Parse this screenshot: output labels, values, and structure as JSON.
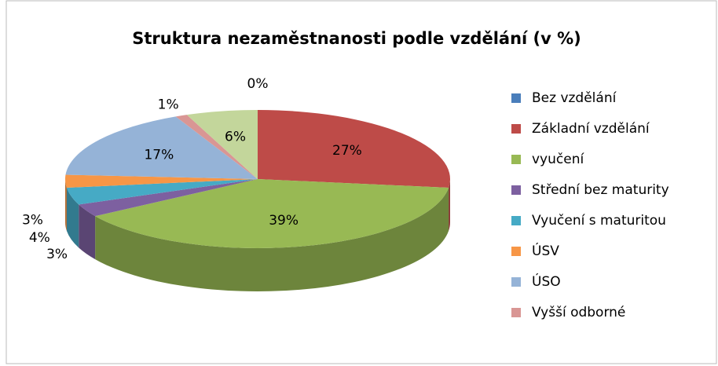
{
  "chart_data": {
    "type": "pie3d",
    "title": "Struktura nezaměstnanosti podle vzdělání (v %)",
    "categories": [
      "Bez vzdělání",
      "Základní vzdělání",
      "vyučení",
      "Střední bez maturity",
      "Vyučení s maturitou",
      "ÚSV",
      "ÚSO",
      "Vyšší odborné",
      null
    ],
    "values": [
      0,
      27,
      39,
      3,
      4,
      3,
      17,
      1,
      6
    ],
    "value_labels": [
      "0%",
      "27%",
      "39%",
      "3%",
      "4%",
      "3%",
      "17%",
      "1%",
      "6%"
    ],
    "colors": [
      "#4a7ebb",
      "#be4b48",
      "#98b954",
      "#7d60a0",
      "#46aac5",
      "#f79646",
      "#95b3d7",
      "#d99694",
      "#c3d69b"
    ],
    "legend": "right"
  }
}
